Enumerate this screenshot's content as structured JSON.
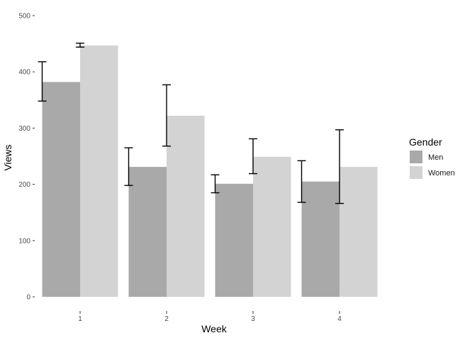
{
  "chart_data": {
    "type": "bar",
    "xlabel": "Week",
    "ylabel": "Views",
    "categories": [
      "1",
      "2",
      "3",
      "4"
    ],
    "ylim": [
      0,
      500
    ],
    "yticks": [
      "0",
      "100",
      "200",
      "300",
      "400",
      "500"
    ],
    "grid": false,
    "legend": {
      "title": "Gender",
      "placement": "right",
      "entries": [
        "Men",
        "Women"
      ]
    },
    "series": [
      {
        "name": "Men",
        "color": "#a9a9a9",
        "values": [
          382,
          231,
          201,
          205
        ],
        "error_low": [
          348,
          198,
          185,
          168
        ],
        "error_high": [
          418,
          265,
          217,
          242
        ]
      },
      {
        "name": "Women",
        "color": "#d3d3d3",
        "values": [
          447,
          322,
          249,
          231
        ],
        "error_low": [
          444,
          268,
          219,
          166
        ],
        "error_high": [
          451,
          377,
          281,
          297
        ]
      }
    ]
  }
}
